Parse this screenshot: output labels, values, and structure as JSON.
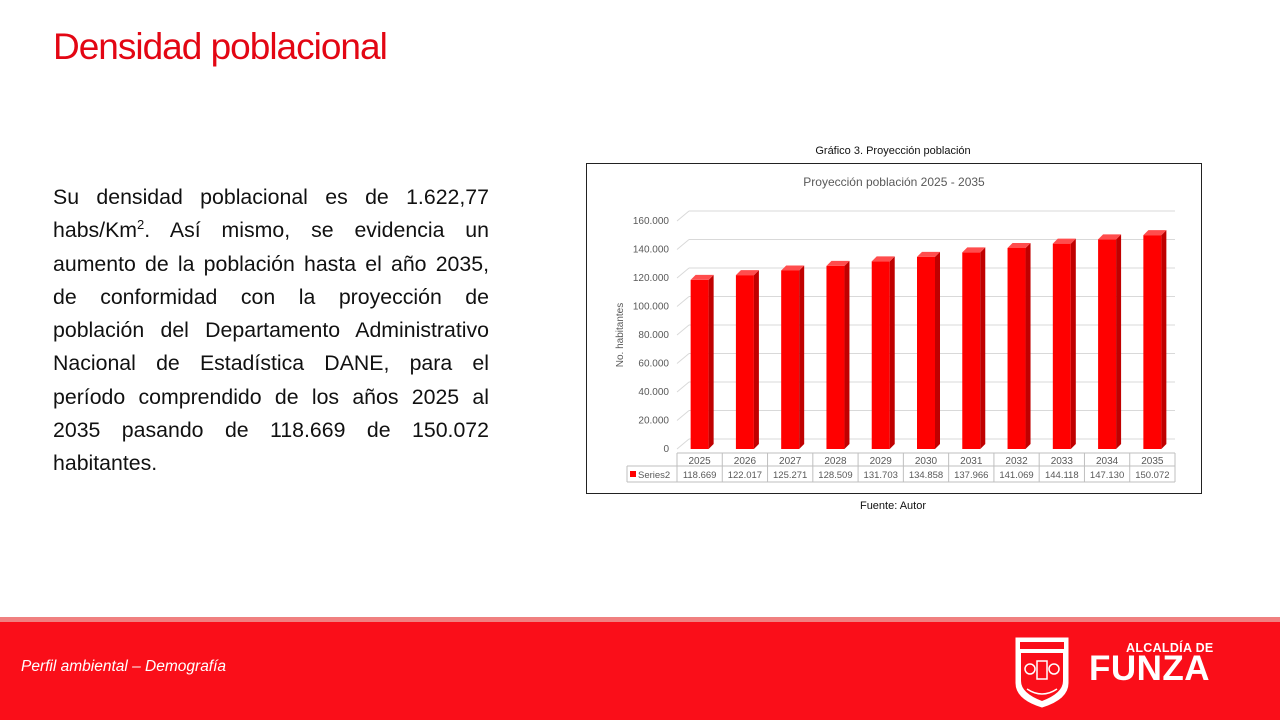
{
  "slide": {
    "title": "Densidad poblacional",
    "paragraph_part1": "Su densidad poblacional es de 1.622,77 habs/Km",
    "paragraph_sup": "2",
    "paragraph_part2": ". Así mismo, se evidencia un aumento de la población hasta el año 2035, de conformidad con la proyección de población del Departamento Administrativo Nacional de Estadística DANE, para el período comprendido de los años 2025 al 2035 pasando de 118.669 de 150.072 habitantes.",
    "figure_caption": "Gráfico 3. Proyección población",
    "source_caption": "Fuente: Autor"
  },
  "footer": {
    "text": "Perfil ambiental – Demografía",
    "brand_top": "ALCALDÍA DE",
    "brand_main": "FUNZA",
    "bg_color": "#fa0e19"
  },
  "chart_data": {
    "type": "bar",
    "title": "Proyección población 2025 - 2035",
    "ylabel": "No. habitantes",
    "ylim": [
      0,
      160000
    ],
    "yticks": [
      "0",
      "20.000",
      "40.000",
      "60.000",
      "80.000",
      "100.000",
      "120.000",
      "140.000",
      "160.000"
    ],
    "categories": [
      "2025",
      "2026",
      "2027",
      "2028",
      "2029",
      "2030",
      "2031",
      "2032",
      "2033",
      "2034",
      "2035"
    ],
    "series": [
      {
        "name": "Series2",
        "values": [
          118669,
          122017,
          125271,
          128509,
          131703,
          134858,
          137966,
          141069,
          144118,
          147130,
          150072
        ],
        "labels": [
          "118.669",
          "122.017",
          "125.271",
          "128.509",
          "131.703",
          "134.858",
          "137.966",
          "141.069",
          "144.118",
          "147.130",
          "150.072"
        ],
        "color": "#ff0000"
      }
    ],
    "grid": true,
    "legend": "data-table"
  }
}
